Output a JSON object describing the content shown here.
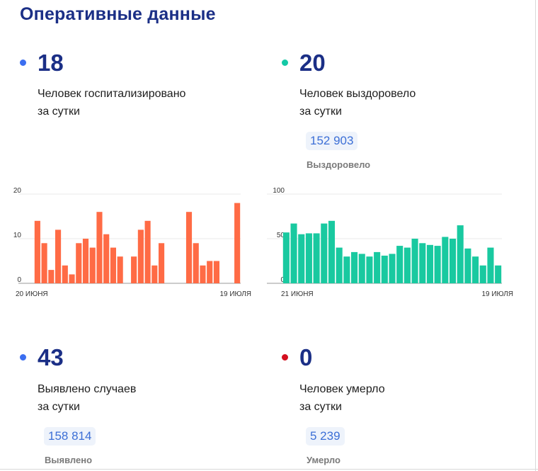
{
  "title": "Оперативные данные",
  "colors": {
    "title": "#1b2f86",
    "hospitalized": "#3b6ef0",
    "recovered": "#14c9a6",
    "cases": "#3b6ef0",
    "deaths": "#d40f1f",
    "bar_hospitalized": "#ff6b45",
    "bar_recovered": "#19c9a0"
  },
  "cards": {
    "hospitalized": {
      "value": "18",
      "line1": "Человек госпитализировано",
      "line2": "за сутки"
    },
    "recovered": {
      "value": "20",
      "line1": "Человек выздоровело",
      "line2": "за сутки",
      "total": "152 903",
      "total_label": "Выздоровело"
    },
    "cases": {
      "value": "43",
      "line1": "Выявлено случаев",
      "line2": "за сутки",
      "total": "158 814",
      "total_label": "Выявлено"
    },
    "deaths": {
      "value": "0",
      "line1": "Человек умерло",
      "line2": "за сутки",
      "total": "5 239",
      "total_label": "Умерло"
    }
  },
  "chart_data": [
    {
      "type": "bar",
      "x_start_label": "20 июня",
      "x_end_label": "19 июля",
      "yticks": [
        0,
        10,
        20
      ],
      "ylim": [
        0,
        20
      ],
      "grid": true,
      "values": [
        14,
        9,
        3,
        12,
        4,
        2,
        9,
        10,
        8,
        16,
        11,
        8,
        6,
        0,
        6,
        12,
        14,
        4,
        9,
        0,
        0,
        0,
        16,
        9,
        4,
        5,
        5,
        0,
        0,
        18
      ]
    },
    {
      "type": "bar",
      "x_start_label": "21 июня",
      "x_end_label": "19 июля",
      "yticks": [
        0,
        50,
        100
      ],
      "ylim": [
        0,
        100
      ],
      "grid": true,
      "values": [
        57,
        67,
        55,
        56,
        56,
        67,
        70,
        40,
        30,
        35,
        33,
        30,
        35,
        31,
        33,
        42,
        40,
        50,
        45,
        43,
        42,
        52,
        50,
        65,
        39,
        30,
        20,
        40,
        20
      ]
    }
  ]
}
